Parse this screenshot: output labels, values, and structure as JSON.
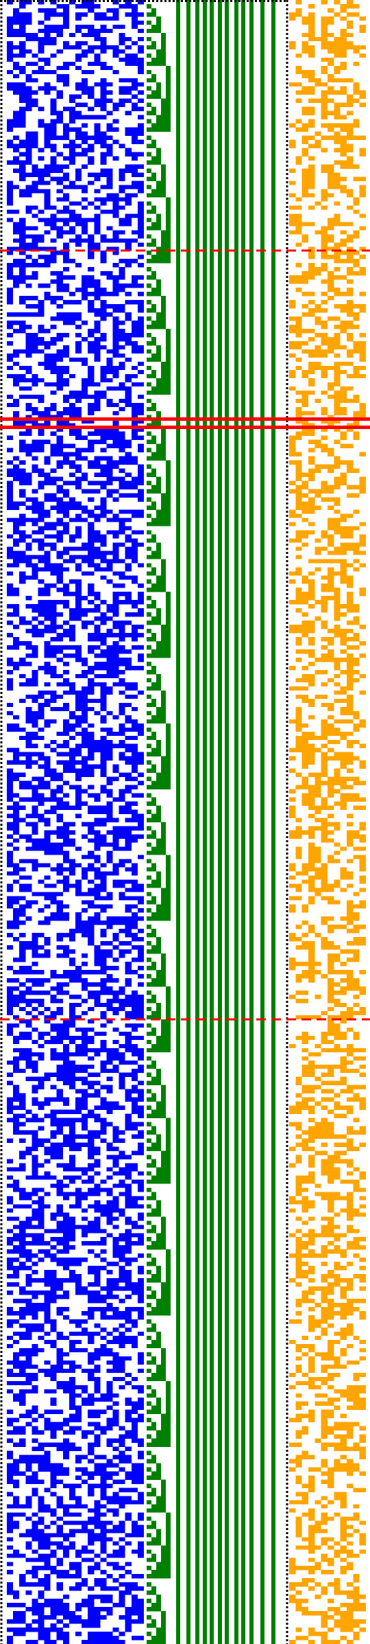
{
  "colors": {
    "background": "#ffffff",
    "blue": "#0000ff",
    "green": "#008000",
    "orange": "#ffa500",
    "red": "#ff0000",
    "dotted": "#000000"
  },
  "visualization": {
    "kind": "bit-pattern visualization",
    "row_count": 400,
    "blue_region": {
      "columns": 22,
      "fill_density": 0.5
    },
    "green_region": {
      "staircase_columns": 5,
      "solid_bars": 12
    },
    "orange_region": {
      "columns": 12,
      "fill_density": 0.45
    },
    "red_marker_rows": [
      61,
      102,
      104,
      248
    ],
    "dashed_marker_rows": [
      61,
      248
    ]
  }
}
